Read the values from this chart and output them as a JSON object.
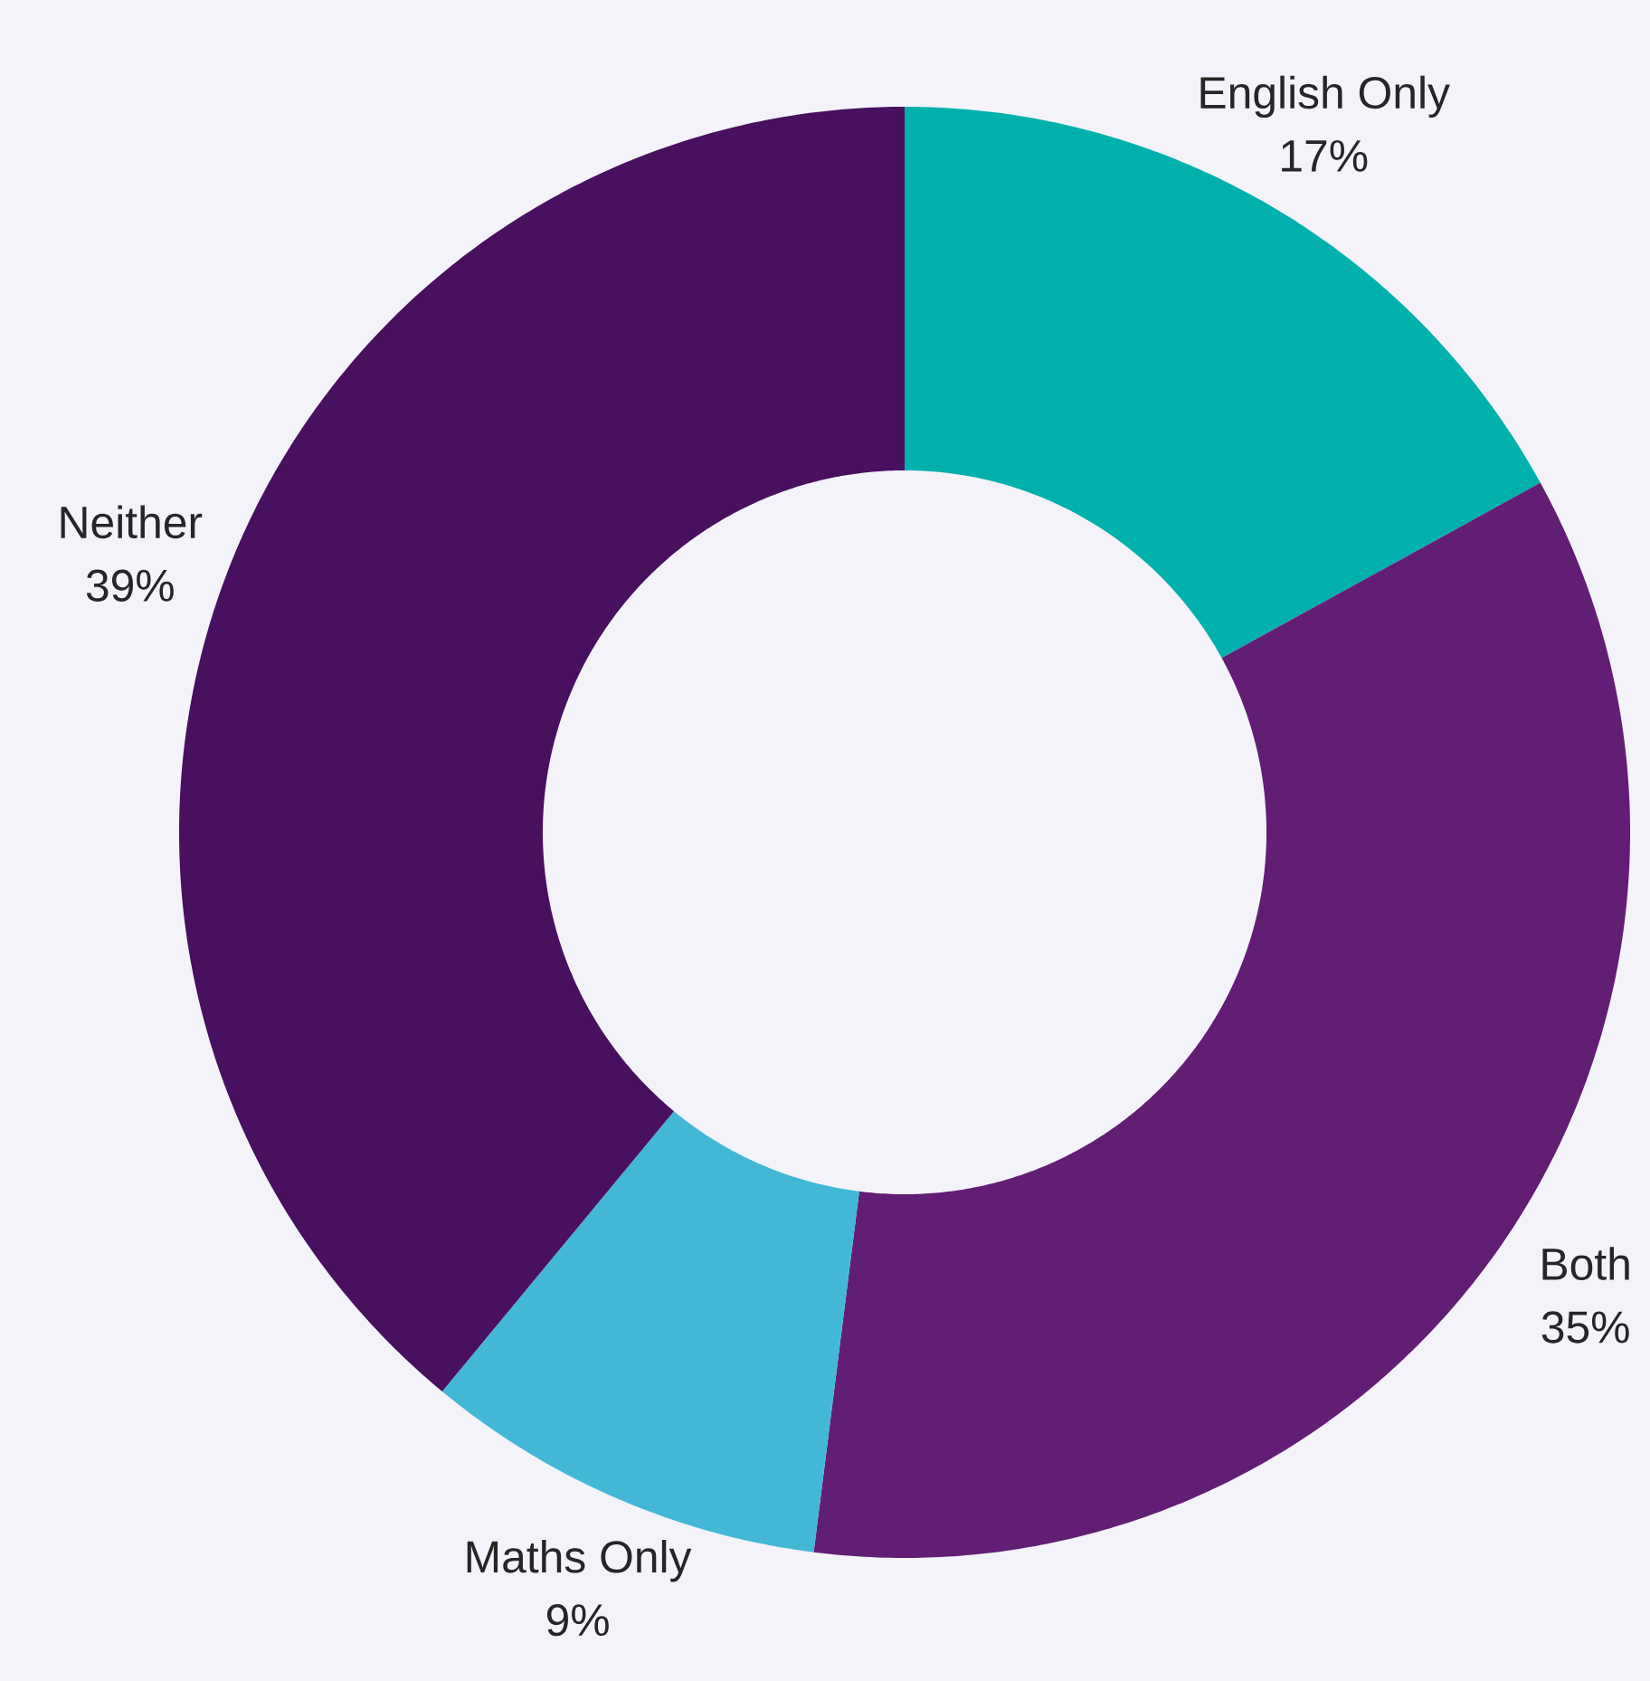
{
  "chart_data": {
    "type": "donut",
    "categories": [
      "English Only",
      "Both",
      "Maths Only",
      "Neither"
    ],
    "values": [
      17,
      35,
      9,
      39
    ],
    "value_labels": [
      "17%",
      "35%",
      "9%",
      "39%"
    ],
    "colors": [
      "#00b0ad",
      "#621e74",
      "#42b8d6",
      "#48105e"
    ]
  }
}
